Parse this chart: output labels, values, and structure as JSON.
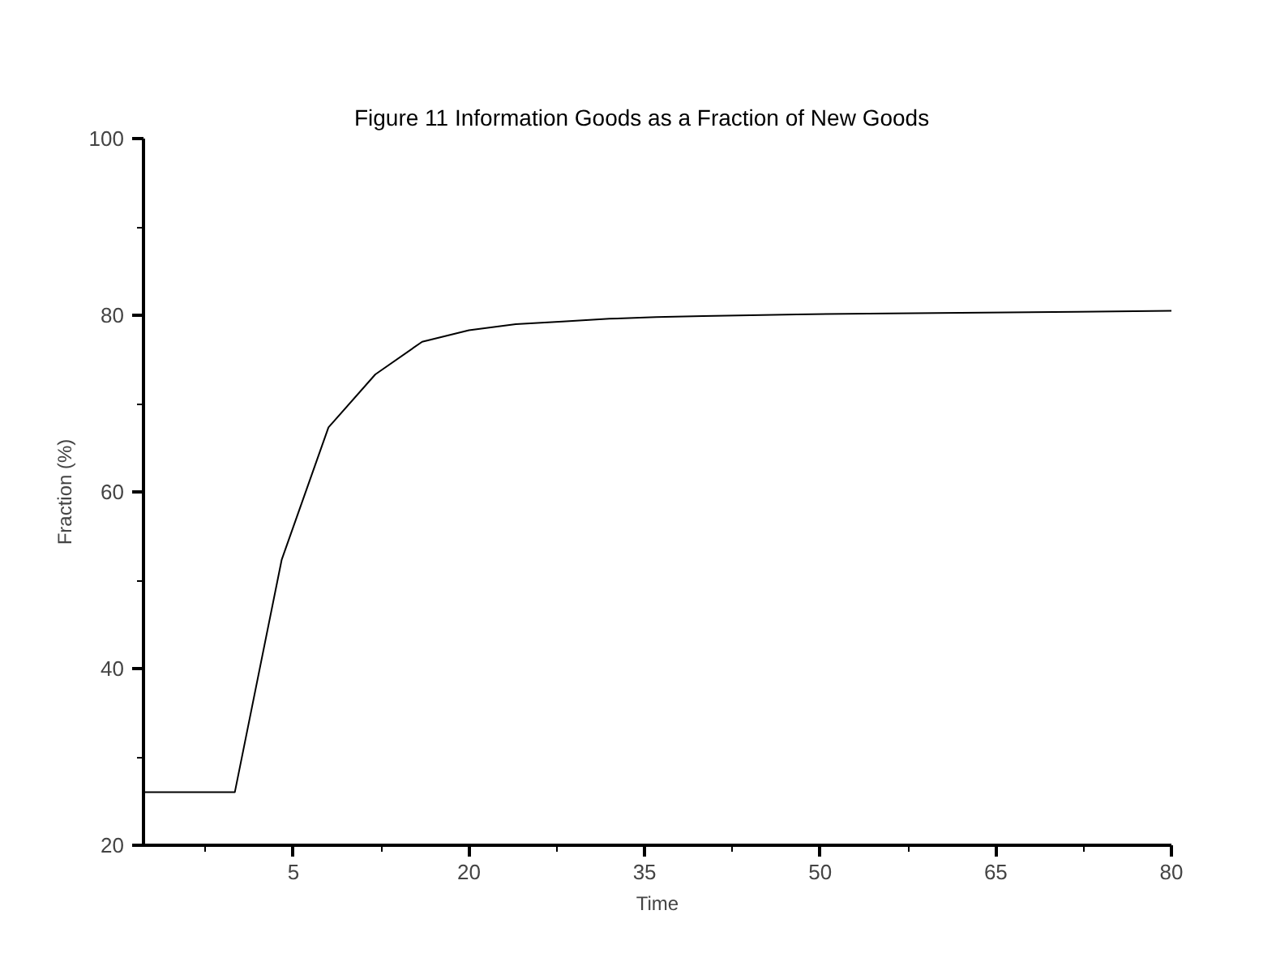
{
  "chart_data": {
    "type": "line",
    "title": "Figure 11      Information Goods as a Fraction of New Goods",
    "xlabel": "Time",
    "ylabel": "Fraction (%)",
    "x": [
      -7.8,
      0,
      4,
      8,
      12,
      16,
      20,
      24,
      28,
      32,
      36,
      40,
      48,
      56,
      64,
      72,
      80
    ],
    "series": [
      {
        "color": "#000000",
        "values": [
          26,
          26,
          52.3,
          67.3,
          73.3,
          77,
          78.3,
          79,
          79.3,
          79.6,
          79.8,
          79.9,
          80.1,
          80.2,
          80.3,
          80.4,
          80.5
        ]
      }
    ],
    "xlim": [
      -7.8,
      80
    ],
    "xticks": [
      5,
      20,
      35,
      50,
      65,
      80
    ],
    "ylim": [
      20,
      100
    ],
    "yticks": [
      20,
      40,
      60,
      80,
      100
    ],
    "grid": false,
    "marker": "none",
    "line_style": "solid"
  }
}
